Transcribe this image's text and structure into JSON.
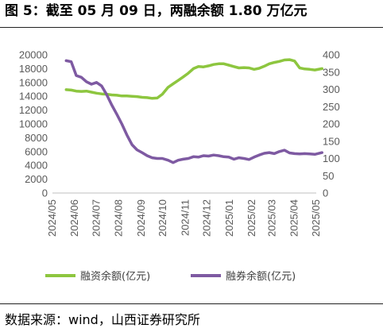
{
  "header": {
    "title": "图 5：截至 05 月 09 日，两融余额 1.80 万亿元"
  },
  "footer": {
    "source": "数据来源：wind，山西证券研究所"
  },
  "chart_data": {
    "type": "line",
    "x": [
      "2024/05",
      "2024/06",
      "2024/07",
      "2024/08",
      "2024/09",
      "2024/10",
      "2024/11",
      "2024/12",
      "2025/01",
      "2025/02",
      "2025/03",
      "2025/04",
      "2025/05"
    ],
    "y_left": {
      "range": [
        0,
        20000
      ],
      "ticks": [
        0,
        2000,
        4000,
        6000,
        8000,
        10000,
        12000,
        14000,
        16000,
        18000,
        20000
      ]
    },
    "y_right": {
      "range": [
        0,
        400
      ],
      "ticks": [
        0,
        50,
        100,
        150,
        200,
        250,
        300,
        350,
        400
      ]
    },
    "series": [
      {
        "name": "融资余额(亿元)",
        "axis": "left",
        "color": "#8DC63F",
        "values": [
          [
            "2024/05/20",
            14950
          ],
          [
            "2024/05/27",
            14900
          ],
          [
            "2024/06/03",
            14750
          ],
          [
            "2024/06/10",
            14700
          ],
          [
            "2024/06/17",
            14750
          ],
          [
            "2024/06/24",
            14600
          ],
          [
            "2024/07/01",
            14450
          ],
          [
            "2024/07/08",
            14350
          ],
          [
            "2024/07/15",
            14300
          ],
          [
            "2024/07/22",
            14200
          ],
          [
            "2024/07/29",
            14150
          ],
          [
            "2024/08/05",
            14050
          ],
          [
            "2024/08/12",
            14050
          ],
          [
            "2024/08/19",
            14000
          ],
          [
            "2024/08/26",
            13950
          ],
          [
            "2024/09/02",
            13850
          ],
          [
            "2024/09/09",
            13800
          ],
          [
            "2024/09/16",
            13700
          ],
          [
            "2024/09/23",
            13750
          ],
          [
            "2024/09/30",
            14300
          ],
          [
            "2024/10/08",
            15300
          ],
          [
            "2024/10/15",
            15800
          ],
          [
            "2024/10/22",
            16300
          ],
          [
            "2024/10/29",
            16800
          ],
          [
            "2024/11/05",
            17350
          ],
          [
            "2024/11/12",
            18000
          ],
          [
            "2024/11/19",
            18300
          ],
          [
            "2024/11/26",
            18250
          ],
          [
            "2024/12/03",
            18400
          ],
          [
            "2024/12/10",
            18600
          ],
          [
            "2024/12/17",
            18700
          ],
          [
            "2024/12/24",
            18700
          ],
          [
            "2024/12/31",
            18500
          ],
          [
            "2025/01/07",
            18300
          ],
          [
            "2025/01/14",
            18100
          ],
          [
            "2025/01/21",
            18150
          ],
          [
            "2025/01/28",
            18100
          ],
          [
            "2025/02/04",
            17900
          ],
          [
            "2025/02/11",
            18050
          ],
          [
            "2025/02/18",
            18350
          ],
          [
            "2025/02/25",
            18700
          ],
          [
            "2025/03/04",
            18900
          ],
          [
            "2025/03/11",
            19050
          ],
          [
            "2025/03/18",
            19250
          ],
          [
            "2025/03/25",
            19300
          ],
          [
            "2025/04/01",
            19100
          ],
          [
            "2025/04/08",
            18100
          ],
          [
            "2025/04/15",
            17950
          ],
          [
            "2025/04/22",
            17900
          ],
          [
            "2025/04/29",
            17800
          ],
          [
            "2025/05/09",
            18000
          ]
        ]
      },
      {
        "name": "融券余额(亿元)",
        "axis": "right",
        "color": "#7E5AA2",
        "values": [
          [
            "2024/05/20",
            383
          ],
          [
            "2024/05/27",
            380
          ],
          [
            "2024/06/03",
            340
          ],
          [
            "2024/06/10",
            335
          ],
          [
            "2024/06/17",
            322
          ],
          [
            "2024/06/24",
            315
          ],
          [
            "2024/07/01",
            320
          ],
          [
            "2024/07/08",
            310
          ],
          [
            "2024/07/15",
            285
          ],
          [
            "2024/07/22",
            255
          ],
          [
            "2024/07/29",
            228
          ],
          [
            "2024/08/05",
            200
          ],
          [
            "2024/08/12",
            168
          ],
          [
            "2024/08/19",
            140
          ],
          [
            "2024/08/26",
            125
          ],
          [
            "2024/09/02",
            117
          ],
          [
            "2024/09/09",
            108
          ],
          [
            "2024/09/16",
            102
          ],
          [
            "2024/09/23",
            100
          ],
          [
            "2024/09/30",
            100
          ],
          [
            "2024/10/08",
            95
          ],
          [
            "2024/10/15",
            88
          ],
          [
            "2024/10/22",
            95
          ],
          [
            "2024/10/29",
            98
          ],
          [
            "2024/11/05",
            100
          ],
          [
            "2024/11/12",
            105
          ],
          [
            "2024/11/19",
            104
          ],
          [
            "2024/11/26",
            108
          ],
          [
            "2024/12/03",
            107
          ],
          [
            "2024/12/10",
            110
          ],
          [
            "2024/12/17",
            108
          ],
          [
            "2024/12/24",
            105
          ],
          [
            "2024/12/31",
            104
          ],
          [
            "2025/01/07",
            98
          ],
          [
            "2025/01/14",
            102
          ],
          [
            "2025/01/21",
            100
          ],
          [
            "2025/01/28",
            97
          ],
          [
            "2025/02/04",
            104
          ],
          [
            "2025/02/11",
            110
          ],
          [
            "2025/02/18",
            115
          ],
          [
            "2025/02/25",
            117
          ],
          [
            "2025/03/04",
            114
          ],
          [
            "2025/03/11",
            120
          ],
          [
            "2025/03/18",
            124
          ],
          [
            "2025/03/25",
            116
          ],
          [
            "2025/04/01",
            114
          ],
          [
            "2025/04/08",
            113
          ],
          [
            "2025/04/15",
            114
          ],
          [
            "2025/04/22",
            113
          ],
          [
            "2025/04/29",
            112
          ],
          [
            "2025/05/09",
            117
          ]
        ]
      }
    ],
    "legend_position": "bottom",
    "grid": false
  }
}
